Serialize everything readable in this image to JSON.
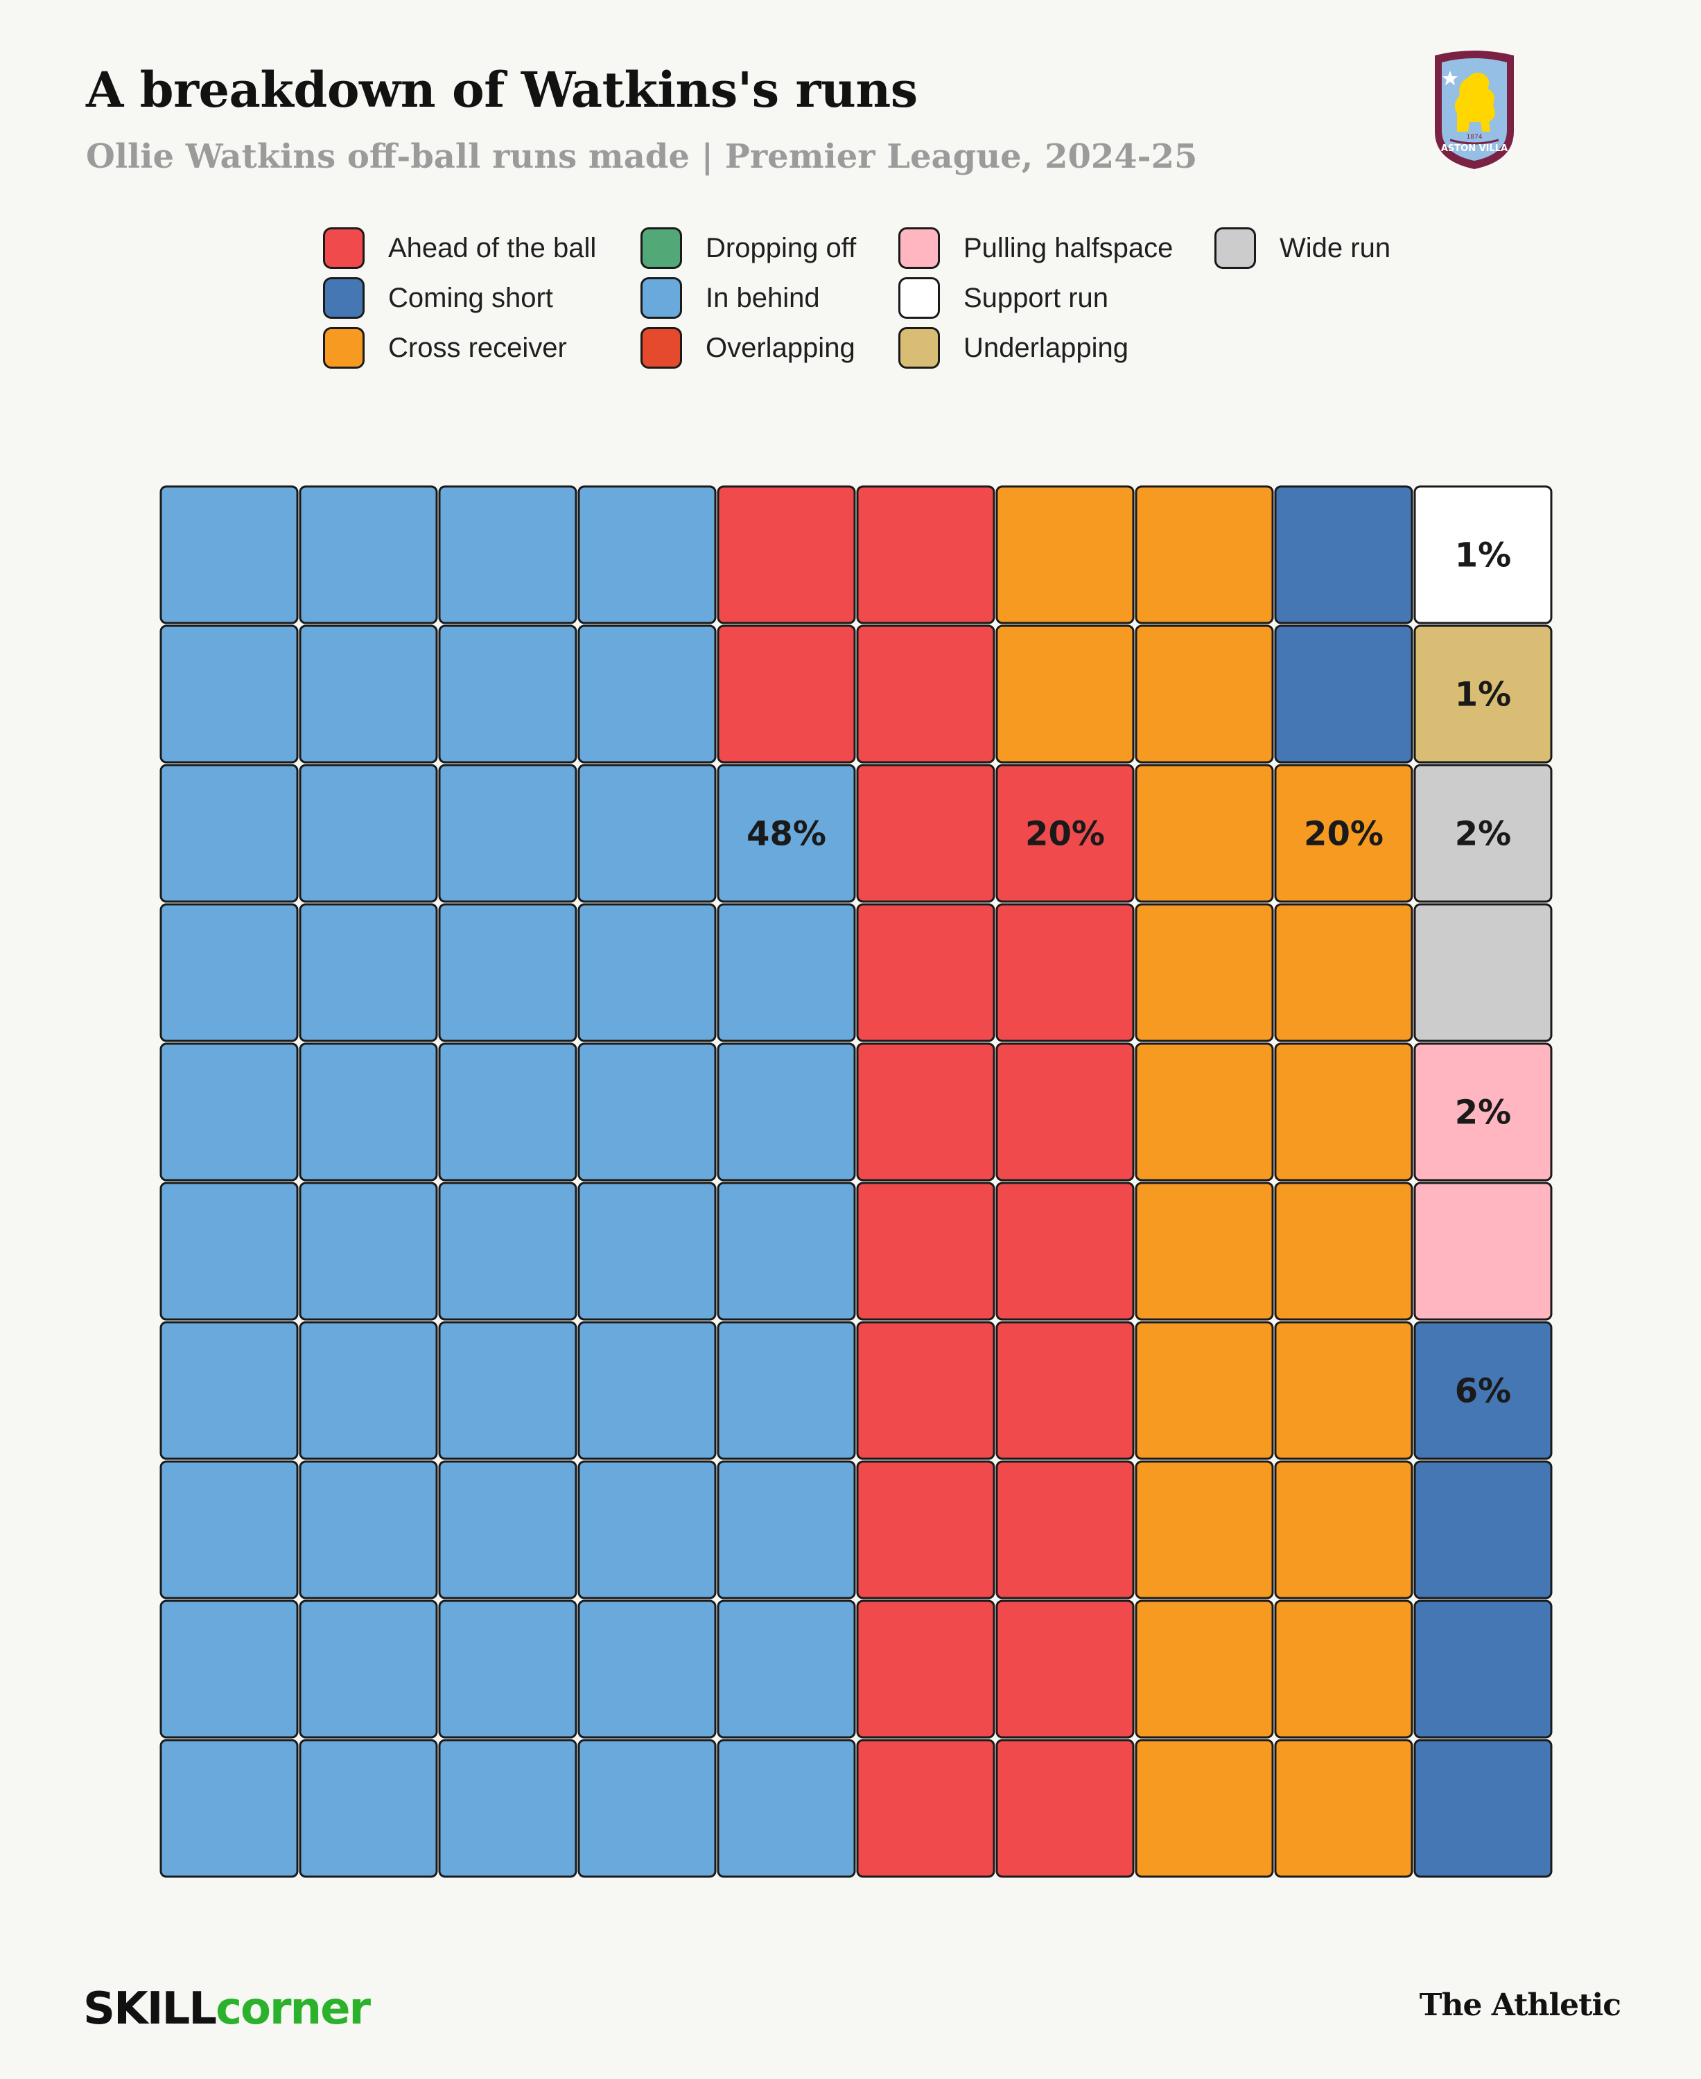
{
  "header": {
    "title": "A breakdown of Watkins's runs",
    "subtitle": "Ollie Watkins off-ball runs made | Premier League, 2024-25",
    "crest_text": "ASTON VILLA",
    "crest_year": "1874"
  },
  "colors": {
    "background": "#f7f7f3",
    "tile_border": "#1a1a1a"
  },
  "chart_data": {
    "type": "waffle",
    "title": "A breakdown of Watkins's runs",
    "subtitle": "Ollie Watkins off-ball runs made | Premier League, 2024-25",
    "grid": {
      "rows": 10,
      "cols": 10,
      "total": 100
    },
    "legend": [
      {
        "name": "Ahead of the ball",
        "color": "#f04a4c"
      },
      {
        "name": "Coming short",
        "color": "#4677b5"
      },
      {
        "name": "Cross receiver",
        "color": "#f79a21"
      },
      {
        "name": "Dropping off",
        "color": "#52a877"
      },
      {
        "name": "In behind",
        "color": "#6aa9dc"
      },
      {
        "name": "Overlapping",
        "color": "#e54a2c"
      },
      {
        "name": "Pulling halfspace",
        "color": "#ffb6c1"
      },
      {
        "name": "Support run",
        "color": "#ffffff"
      },
      {
        "name": "Underlapping",
        "color": "#d9bd74"
      },
      {
        "name": "Wide run",
        "color": "#cccccc"
      }
    ],
    "series": [
      {
        "name": "In behind",
        "value": 48,
        "label": "48%"
      },
      {
        "name": "Ahead of the ball",
        "value": 20,
        "label": "20%"
      },
      {
        "name": "Cross receiver",
        "value": 20,
        "label": "20%"
      },
      {
        "name": "Coming short",
        "value": 6,
        "label": "6%"
      },
      {
        "name": "Pulling halfspace",
        "value": 2,
        "label": "2%"
      },
      {
        "name": "Wide run",
        "value": 2,
        "label": "2%"
      },
      {
        "name": "Underlapping",
        "value": 1,
        "label": "1%"
      },
      {
        "name": "Support run",
        "value": 1,
        "label": "1%"
      },
      {
        "name": "Dropping off",
        "value": 0,
        "label": ""
      },
      {
        "name": "Overlapping",
        "value": 0,
        "label": ""
      }
    ]
  },
  "footer": {
    "brand_left_a": "SKILL",
    "brand_left_b": "corner",
    "brand_right": "The Athletic"
  }
}
